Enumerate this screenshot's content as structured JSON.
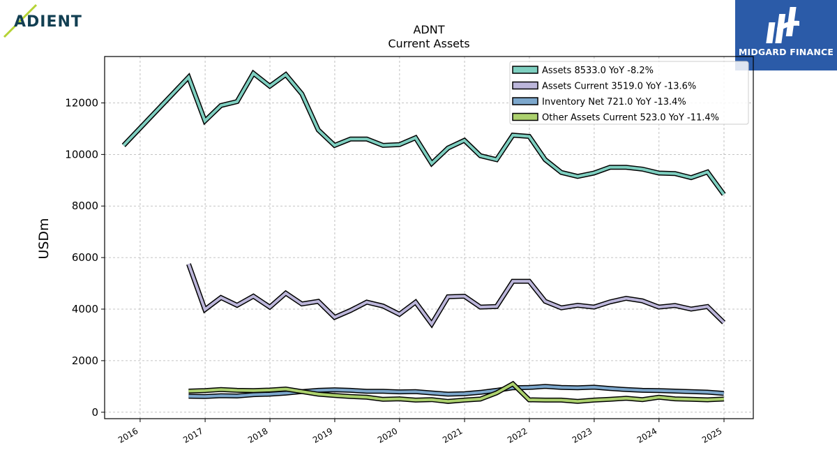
{
  "logos": {
    "left_text": "ADIENT",
    "right_text": "MIDGARD FINANCE"
  },
  "chart_data": {
    "type": "line",
    "title": "ADNT",
    "subtitle": "Current  Assets",
    "xlabel": "",
    "ylabel": "USDm",
    "x_ticks": [
      "2016",
      "2017",
      "2018",
      "2019",
      "2020",
      "2021",
      "2022",
      "2023",
      "2024",
      "2025"
    ],
    "y_ticks": [
      0,
      2000,
      4000,
      6000,
      8000,
      10000,
      12000
    ],
    "xlim": [
      "2015-06-15",
      "2025-06-15"
    ],
    "ylim": [
      -250,
      13800
    ],
    "grid": true,
    "legend_position": "top-right",
    "series": [
      {
        "name": "Assets  8533.0 YoY -8.2%",
        "color": "#7ecfc0",
        "points": [
          [
            "2015-09-30",
            10350
          ],
          [
            "2016-09-30",
            13000
          ],
          [
            "2016-12-31",
            11300
          ],
          [
            "2017-03-31",
            11900
          ],
          [
            "2017-06-30",
            12050
          ],
          [
            "2017-09-30",
            13150
          ],
          [
            "2017-12-31",
            12650
          ],
          [
            "2018-03-31",
            13100
          ],
          [
            "2018-06-30",
            12350
          ],
          [
            "2018-09-30",
            10950
          ],
          [
            "2018-12-31",
            10350
          ],
          [
            "2019-03-31",
            10600
          ],
          [
            "2019-06-30",
            10600
          ],
          [
            "2019-09-30",
            10350
          ],
          [
            "2019-12-31",
            10380
          ],
          [
            "2020-03-31",
            10650
          ],
          [
            "2020-06-30",
            9650
          ],
          [
            "2020-09-30",
            10250
          ],
          [
            "2020-12-31",
            10550
          ],
          [
            "2021-03-31",
            9950
          ],
          [
            "2021-06-30",
            9800
          ],
          [
            "2021-09-30",
            10750
          ],
          [
            "2021-12-31",
            10700
          ],
          [
            "2022-03-31",
            9800
          ],
          [
            "2022-06-30",
            9300
          ],
          [
            "2022-09-30",
            9150
          ],
          [
            "2022-12-31",
            9280
          ],
          [
            "2023-03-31",
            9500
          ],
          [
            "2023-06-30",
            9500
          ],
          [
            "2023-09-30",
            9430
          ],
          [
            "2023-12-31",
            9280
          ],
          [
            "2024-03-31",
            9260
          ],
          [
            "2024-06-30",
            9100
          ],
          [
            "2024-09-30",
            9320
          ],
          [
            "2024-12-31",
            8450
          ]
        ]
      },
      {
        "name": "Assets Current  3519.0 YoY -13.6%",
        "color": "#bcb6da",
        "points": [
          [
            "2016-09-30",
            5750
          ],
          [
            "2016-12-31",
            3980
          ],
          [
            "2017-03-31",
            4450
          ],
          [
            "2017-06-30",
            4150
          ],
          [
            "2017-09-30",
            4500
          ],
          [
            "2017-12-31",
            4080
          ],
          [
            "2018-03-31",
            4620
          ],
          [
            "2018-06-30",
            4200
          ],
          [
            "2018-09-30",
            4300
          ],
          [
            "2018-12-31",
            3680
          ],
          [
            "2019-03-31",
            3950
          ],
          [
            "2019-06-30",
            4270
          ],
          [
            "2019-09-30",
            4120
          ],
          [
            "2019-12-31",
            3800
          ],
          [
            "2020-03-31",
            4270
          ],
          [
            "2020-06-30",
            3420
          ],
          [
            "2020-09-30",
            4480
          ],
          [
            "2020-12-31",
            4500
          ],
          [
            "2021-03-31",
            4080
          ],
          [
            "2021-06-30",
            4100
          ],
          [
            "2021-09-30",
            5080
          ],
          [
            "2021-12-31",
            5080
          ],
          [
            "2022-03-31",
            4300
          ],
          [
            "2022-06-30",
            4050
          ],
          [
            "2022-09-30",
            4150
          ],
          [
            "2022-12-31",
            4080
          ],
          [
            "2023-03-31",
            4280
          ],
          [
            "2023-06-30",
            4420
          ],
          [
            "2023-09-30",
            4320
          ],
          [
            "2023-12-31",
            4080
          ],
          [
            "2024-03-31",
            4140
          ],
          [
            "2024-06-30",
            4000
          ],
          [
            "2024-09-30",
            4100
          ],
          [
            "2024-12-31",
            3480
          ]
        ]
      },
      {
        "name": "Inventory Net  721.0 YoY -13.4%",
        "color": "#7ca7cc",
        "points": [
          [
            "2016-09-30",
            620
          ],
          [
            "2016-12-31",
            610
          ],
          [
            "2017-03-31",
            640
          ],
          [
            "2017-06-30",
            630
          ],
          [
            "2017-09-30",
            680
          ],
          [
            "2017-12-31",
            700
          ],
          [
            "2018-03-31",
            740
          ],
          [
            "2018-06-30",
            800
          ],
          [
            "2018-09-30",
            850
          ],
          [
            "2018-12-31",
            870
          ],
          [
            "2019-03-31",
            850
          ],
          [
            "2019-06-30",
            810
          ],
          [
            "2019-09-30",
            810
          ],
          [
            "2019-12-31",
            790
          ],
          [
            "2020-03-31",
            800
          ],
          [
            "2020-06-30",
            750
          ],
          [
            "2020-09-30",
            700
          ],
          [
            "2020-12-31",
            720
          ],
          [
            "2021-03-31",
            770
          ],
          [
            "2021-06-30",
            850
          ],
          [
            "2021-09-30",
            950
          ],
          [
            "2021-12-31",
            960
          ],
          [
            "2022-03-31",
            1000
          ],
          [
            "2022-06-30",
            960
          ],
          [
            "2022-09-30",
            950
          ],
          [
            "2022-12-31",
            970
          ],
          [
            "2023-03-31",
            920
          ],
          [
            "2023-06-30",
            880
          ],
          [
            "2023-09-30",
            850
          ],
          [
            "2023-12-31",
            840
          ],
          [
            "2024-03-31",
            820
          ],
          [
            "2024-06-30",
            800
          ],
          [
            "2024-09-30",
            780
          ],
          [
            "2024-12-31",
            730
          ]
        ]
      },
      {
        "name": "Other Assets Current  523.0 YoY -11.4%",
        "color": "#acd16e",
        "points": [
          [
            "2016-09-30",
            820
          ],
          [
            "2016-12-31",
            840
          ],
          [
            "2017-03-31",
            880
          ],
          [
            "2017-06-30",
            850
          ],
          [
            "2017-09-30",
            840
          ],
          [
            "2017-12-31",
            860
          ],
          [
            "2018-03-31",
            900
          ],
          [
            "2018-06-30",
            800
          ],
          [
            "2018-09-30",
            700
          ],
          [
            "2018-12-31",
            650
          ],
          [
            "2019-03-31",
            610
          ],
          [
            "2019-06-30",
            580
          ],
          [
            "2019-09-30",
            500
          ],
          [
            "2019-12-31",
            520
          ],
          [
            "2020-03-31",
            470
          ],
          [
            "2020-06-30",
            490
          ],
          [
            "2020-09-30",
            420
          ],
          [
            "2020-12-31",
            470
          ],
          [
            "2021-03-31",
            510
          ],
          [
            "2021-06-30",
            750
          ],
          [
            "2021-09-30",
            1100
          ],
          [
            "2021-12-31",
            480
          ],
          [
            "2022-03-31",
            470
          ],
          [
            "2022-06-30",
            470
          ],
          [
            "2022-09-30",
            420
          ],
          [
            "2022-12-31",
            470
          ],
          [
            "2023-03-31",
            500
          ],
          [
            "2023-06-30",
            540
          ],
          [
            "2023-09-30",
            490
          ],
          [
            "2023-12-31",
            580
          ],
          [
            "2024-03-31",
            520
          ],
          [
            "2024-06-30",
            500
          ],
          [
            "2024-09-30",
            480
          ],
          [
            "2024-12-31",
            510
          ]
        ]
      }
    ]
  }
}
